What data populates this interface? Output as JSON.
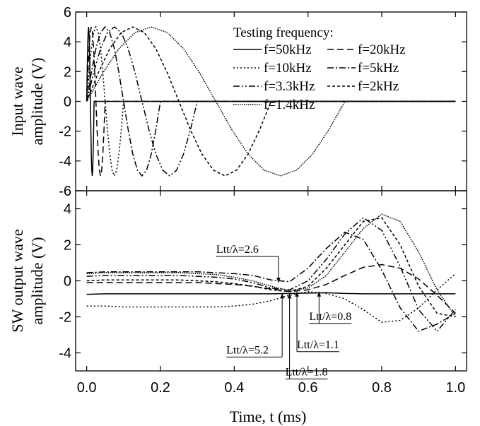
{
  "chart_data": [
    {
      "type": "line",
      "y_label": [
        "Input wave",
        "amplitude (V)"
      ],
      "ylim": [
        -6,
        6
      ],
      "yticks": [
        -6,
        -4,
        -2,
        0,
        2,
        4,
        6
      ],
      "legend_title": "Testing frequency:",
      "legend": "upper right",
      "series": [
        {
          "name": "f=50kHz",
          "color": "#000000",
          "style": "solid",
          "x": [
            0,
            0.00125,
            0.0025,
            0.00375,
            0.005,
            0.00625,
            0.0075,
            0.00875,
            0.01,
            0.01125,
            0.0125,
            0.01375,
            0.015,
            0.01625,
            0.0175,
            0.01875,
            0.02,
            1
          ],
          "values": [
            0,
            1.91,
            3.54,
            4.62,
            5,
            4.62,
            3.54,
            1.91,
            0,
            -1.91,
            -3.54,
            -4.62,
            -5,
            -4.62,
            -3.54,
            -1.91,
            0,
            0
          ]
        },
        {
          "name": "f=20kHz",
          "color": "#000000",
          "style": "dashed",
          "x": [
            0,
            0.003125,
            0.00625,
            0.009375,
            0.0125,
            0.015625,
            0.01875,
            0.021875,
            0.025,
            0.028125,
            0.03125,
            0.034375,
            0.0375,
            0.040625,
            0.04375,
            0.046875,
            0.05,
            1
          ],
          "values": [
            0,
            1.91,
            3.54,
            4.62,
            5,
            4.62,
            3.54,
            1.91,
            0,
            -1.91,
            -3.54,
            -4.62,
            -5,
            -4.62,
            -3.54,
            -1.91,
            0,
            0
          ]
        },
        {
          "name": "f=10kHz",
          "color": "#000000",
          "style": "dotted",
          "x": [
            0,
            0.00625,
            0.0125,
            0.01875,
            0.025,
            0.03125,
            0.0375,
            0.04375,
            0.05,
            0.05625,
            0.0625,
            0.06875,
            0.075,
            0.08125,
            0.0875,
            0.09375,
            0.1,
            1
          ],
          "values": [
            0,
            1.91,
            3.54,
            4.62,
            5,
            4.62,
            3.54,
            1.91,
            0,
            -1.91,
            -3.54,
            -4.62,
            -5,
            -4.62,
            -3.54,
            -1.91,
            0,
            0
          ]
        },
        {
          "name": "f=5kHz",
          "color": "#000000",
          "style": "dashdot",
          "x": [
            0,
            0.0125,
            0.025,
            0.0375,
            0.05,
            0.0625,
            0.075,
            0.0875,
            0.1,
            0.1125,
            0.125,
            0.1375,
            0.15,
            0.1625,
            0.175,
            0.1875,
            0.2,
            1
          ],
          "values": [
            0,
            1.91,
            3.54,
            4.62,
            5,
            4.62,
            3.54,
            1.91,
            0,
            -1.91,
            -3.54,
            -4.62,
            -5,
            -4.62,
            -3.54,
            -1.91,
            0,
            0
          ]
        },
        {
          "name": "f=3.3kHz",
          "color": "#000000",
          "style": "dashdotdot",
          "x": [
            0,
            0.01875,
            0.0375,
            0.05625,
            0.075,
            0.09375,
            0.1125,
            0.13125,
            0.15,
            0.16875,
            0.1875,
            0.20625,
            0.225,
            0.24375,
            0.2625,
            0.28125,
            0.3,
            1
          ],
          "values": [
            0,
            1.91,
            3.54,
            4.62,
            5,
            4.62,
            3.54,
            1.91,
            0,
            -1.91,
            -3.54,
            -4.62,
            -5,
            -4.62,
            -3.54,
            -1.91,
            0,
            0
          ]
        },
        {
          "name": "f=2kHz",
          "color": "#000000",
          "style": "shortdash",
          "x": [
            0,
            0.03125,
            0.0625,
            0.09375,
            0.125,
            0.15625,
            0.1875,
            0.21875,
            0.25,
            0.28125,
            0.3125,
            0.34375,
            0.375,
            0.40625,
            0.4375,
            0.46875,
            0.5,
            1
          ],
          "values": [
            0,
            1.91,
            3.54,
            4.62,
            5,
            4.62,
            3.54,
            1.91,
            0,
            -1.91,
            -3.54,
            -4.62,
            -5,
            -4.62,
            -3.54,
            -1.91,
            0,
            0
          ]
        },
        {
          "name": "f=1.4kHz",
          "color": "#000000",
          "style": "densedot",
          "x": [
            0,
            0.04375,
            0.0875,
            0.13125,
            0.175,
            0.21875,
            0.2625,
            0.30625,
            0.35,
            0.39375,
            0.4375,
            0.48125,
            0.525,
            0.56875,
            0.6125,
            0.65625,
            0.7
          ],
          "values": [
            0,
            1.91,
            3.54,
            4.62,
            5,
            4.62,
            3.54,
            1.91,
            0,
            -1.91,
            -3.54,
            -4.62,
            -5,
            -4.62,
            -3.54,
            -1.91,
            0
          ]
        }
      ]
    },
    {
      "type": "line",
      "x_label": "Time, t (ms)",
      "y_label": [
        "SW output wave",
        "amplitude (V)"
      ],
      "xlim": [
        -0.03,
        1.03
      ],
      "xticks": [
        {
          "value": 0,
          "label": "0.0"
        },
        0.2,
        0.4,
        0.6,
        0.8,
        {
          "value": 1,
          "label": "1.0"
        }
      ],
      "ylim": [
        -5,
        5
      ],
      "yticks": [
        -4,
        -2,
        0,
        2,
        4
      ],
      "x": [
        0,
        0.05,
        0.1,
        0.15,
        0.2,
        0.25,
        0.3,
        0.35,
        0.4,
        0.45,
        0.5,
        0.55,
        0.6,
        0.65,
        0.7,
        0.75,
        0.8,
        0.85,
        0.9,
        0.95,
        1
      ],
      "series": [
        {
          "color": "#000000",
          "style": "solid",
          "values": [
            -0.75,
            -0.72,
            -0.72,
            -0.72,
            -0.72,
            -0.72,
            -0.72,
            -0.72,
            -0.72,
            -0.72,
            -0.72,
            -0.7,
            -0.68,
            -0.66,
            -0.7,
            -0.72,
            -0.72,
            -0.72,
            -0.72,
            -0.72,
            -0.72
          ]
        },
        {
          "color": "#000000",
          "style": "dashed",
          "values": [
            -0.1,
            -0.1,
            -0.1,
            -0.1,
            -0.1,
            -0.1,
            -0.1,
            -0.15,
            -0.2,
            -0.3,
            -0.45,
            -0.6,
            -0.5,
            -0.2,
            0.3,
            0.75,
            0.9,
            0.7,
            0.1,
            -0.8,
            -1.8
          ]
        },
        {
          "color": "#000000",
          "style": "dotted",
          "values": [
            -1.4,
            -1.4,
            -1.45,
            -1.45,
            -1.45,
            -1.45,
            -1.45,
            -1.45,
            -1.4,
            -1.3,
            -1.1,
            -0.8,
            -0.6,
            -0.7,
            -1.0,
            -1.6,
            -2.3,
            -2.2,
            -1.5,
            -0.5,
            0.4
          ]
        },
        {
          "color": "#000000",
          "style": "dashdot",
          "values": [
            0.45,
            0.5,
            0.5,
            0.5,
            0.5,
            0.5,
            0.5,
            0.45,
            0.4,
            0.3,
            0.05,
            -0.05,
            0.7,
            1.8,
            2.7,
            2.3,
            0.6,
            -1.5,
            -2.8,
            -2.4,
            -1.8
          ]
        },
        {
          "color": "#000000",
          "style": "dashdotdot",
          "values": [
            0.25,
            0.3,
            0.3,
            0.3,
            0.3,
            0.3,
            0.25,
            0.2,
            0.1,
            -0.1,
            -0.4,
            -0.5,
            0.0,
            1.2,
            2.6,
            3.5,
            2.8,
            0.8,
            -1.6,
            -2.8,
            -1.6
          ]
        },
        {
          "color": "#000000",
          "style": "shortdash",
          "values": [
            0.0,
            0.05,
            0.05,
            0.05,
            0.05,
            0.05,
            0.0,
            -0.05,
            -0.15,
            -0.3,
            -0.5,
            -0.6,
            -0.3,
            0.7,
            2.0,
            3.3,
            3.5,
            2.0,
            -0.3,
            -1.8,
            -2.0
          ]
        },
        {
          "color": "#000000",
          "style": "densedot",
          "values": [
            0.4,
            0.45,
            0.45,
            0.45,
            0.45,
            0.45,
            0.4,
            0.35,
            0.2,
            0.0,
            -0.3,
            -0.55,
            -0.4,
            0.3,
            1.6,
            2.9,
            3.7,
            3.3,
            1.6,
            -0.5,
            -2.0
          ]
        }
      ],
      "annotations": [
        {
          "text": "Ltt/λ=2.6",
          "x": 0.52,
          "y": -0.1
        },
        {
          "text": "Ltt/λ=0.8",
          "x": 0.63,
          "y": -0.6
        },
        {
          "text": "Ltt/λ=1.1",
          "x": 0.57,
          "y": -0.6
        },
        {
          "text": "Ltt/λ=1.8",
          "x": 0.55,
          "y": -0.7
        },
        {
          "text": "Ltt/λ=5.2",
          "x": 0.53,
          "y": -0.7
        }
      ]
    }
  ]
}
